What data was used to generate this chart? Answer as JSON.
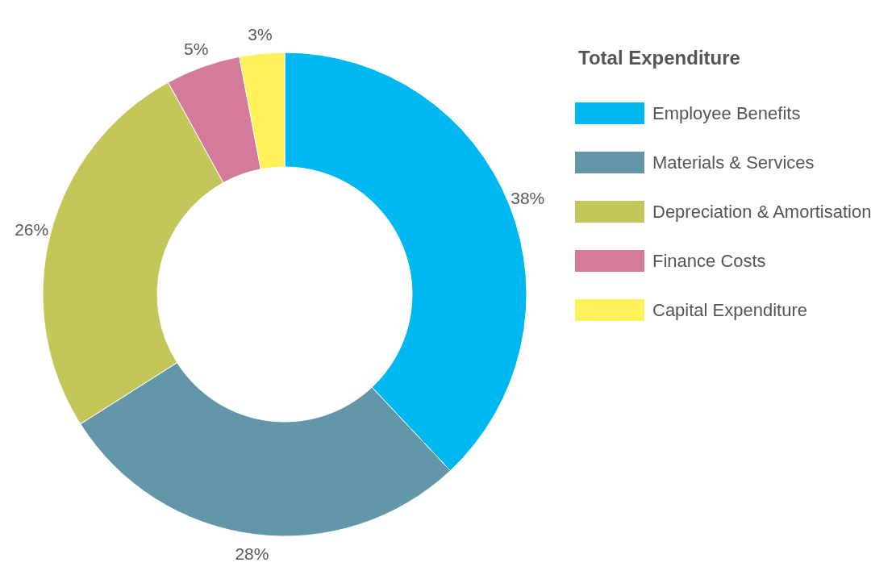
{
  "chart_data": {
    "type": "donut",
    "legend_title": "Total Expenditure",
    "categories": [
      "Employee Benefits",
      "Materials & Services",
      "Depreciation & Amortisation",
      "Finance Costs",
      "Capital Expenditure"
    ],
    "values": [
      38,
      28,
      26,
      5,
      3
    ],
    "colors": [
      "#00b8f0",
      "#6396a8",
      "#c3c75a",
      "#d47b9b",
      "#fef159"
    ],
    "value_labels": [
      "38%",
      "28%",
      "26%",
      "5%",
      "3%"
    ],
    "legend": "top right"
  }
}
